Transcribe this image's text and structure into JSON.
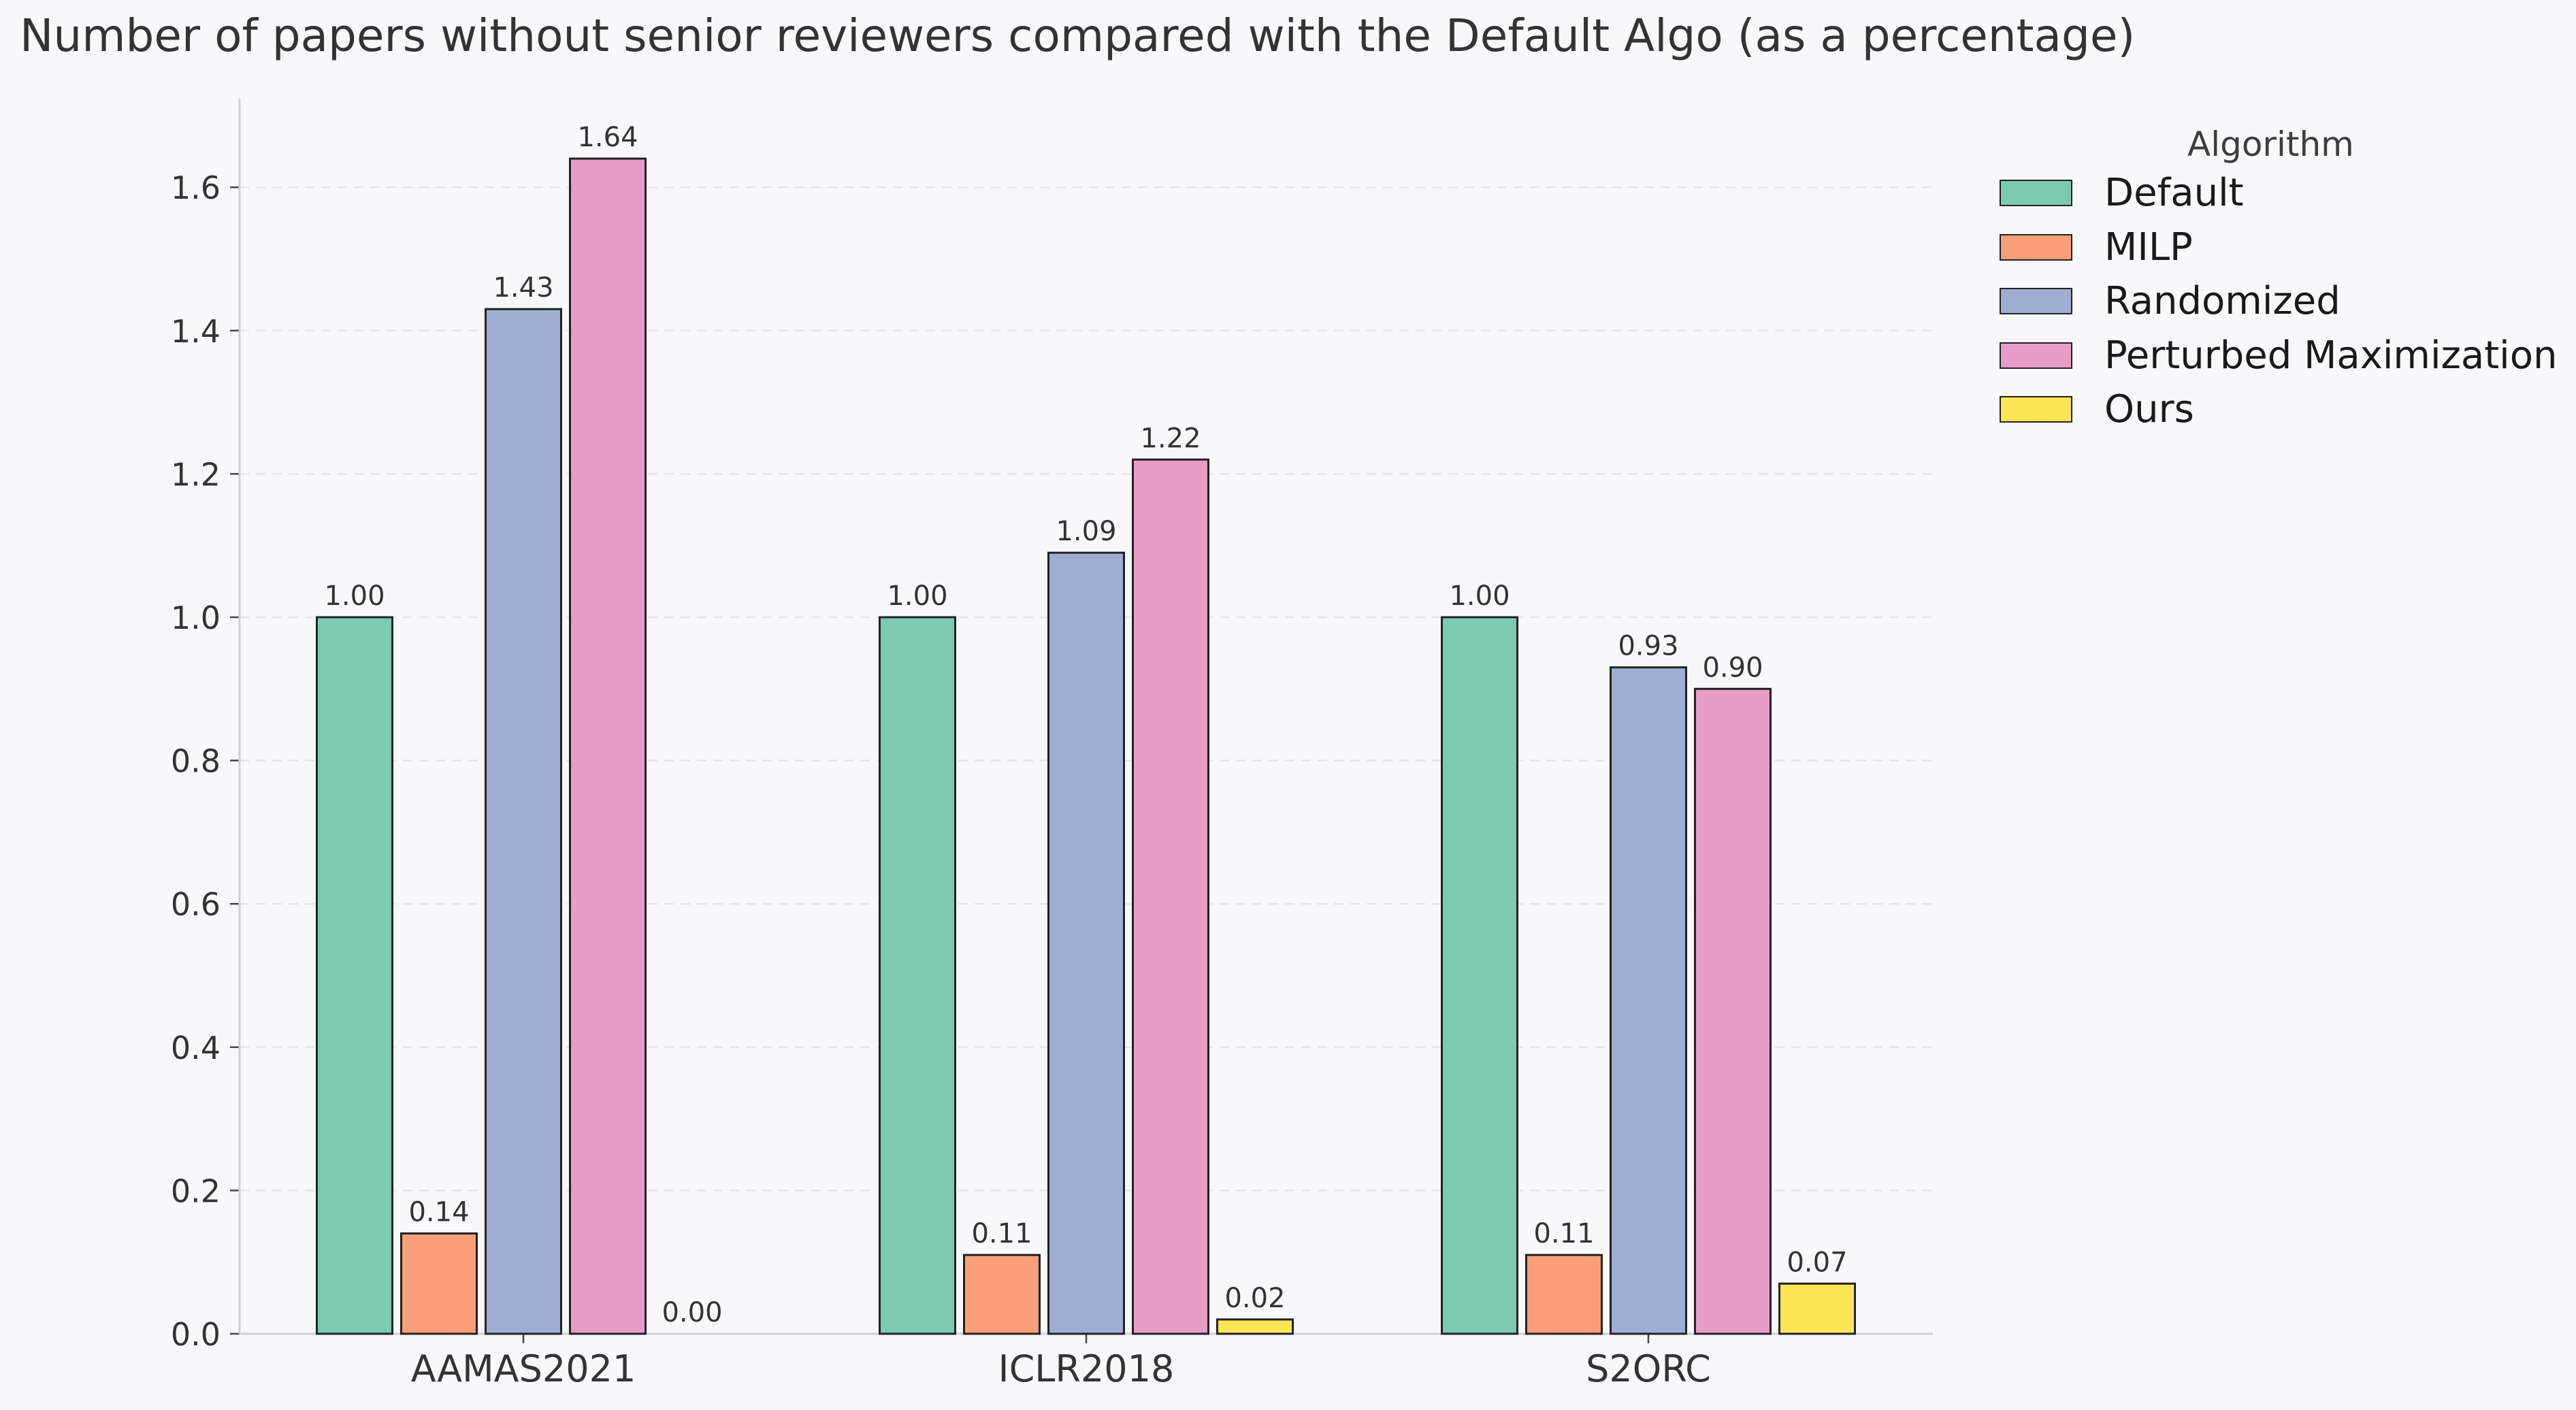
{
  "chart_data": {
    "type": "bar",
    "title": "Number of papers without senior reviewers compared with the Default Algo (as a percentage)",
    "xlabel": "",
    "ylabel": "",
    "categories": [
      "AAMAS2021",
      "ICLR2018",
      "S2ORC"
    ],
    "ylim": [
      0,
      1.72
    ],
    "yticks": [
      "0.0",
      "0.2",
      "0.4",
      "0.6",
      "0.8",
      "1.0",
      "1.2",
      "1.4",
      "1.6"
    ],
    "grid": true,
    "legend_title": "Algorithm",
    "legend_position": "right",
    "series": [
      {
        "name": "Default",
        "color": "#7ccab0",
        "values": [
          1.0,
          1.0,
          1.0
        ],
        "labels": [
          "1.00",
          "1.00",
          "1.00"
        ]
      },
      {
        "name": "MILP",
        "color": "#f99f79",
        "values": [
          0.14,
          0.11,
          0.11
        ],
        "labels": [
          "0.14",
          "0.11",
          "0.11"
        ]
      },
      {
        "name": "Randomized",
        "color": "#9eaed2",
        "values": [
          1.43,
          1.09,
          0.93
        ],
        "labels": [
          "1.43",
          "1.09",
          "0.93"
        ]
      },
      {
        "name": "Perturbed Maximization",
        "color": "#e89cc8",
        "values": [
          1.64,
          1.22,
          0.9
        ],
        "labels": [
          "1.64",
          "1.22",
          "0.90"
        ]
      },
      {
        "name": "Ours",
        "color": "#fce656",
        "values": [
          0.0,
          0.02,
          0.07
        ],
        "labels": [
          "0.00",
          "0.02",
          "0.07"
        ]
      }
    ]
  }
}
